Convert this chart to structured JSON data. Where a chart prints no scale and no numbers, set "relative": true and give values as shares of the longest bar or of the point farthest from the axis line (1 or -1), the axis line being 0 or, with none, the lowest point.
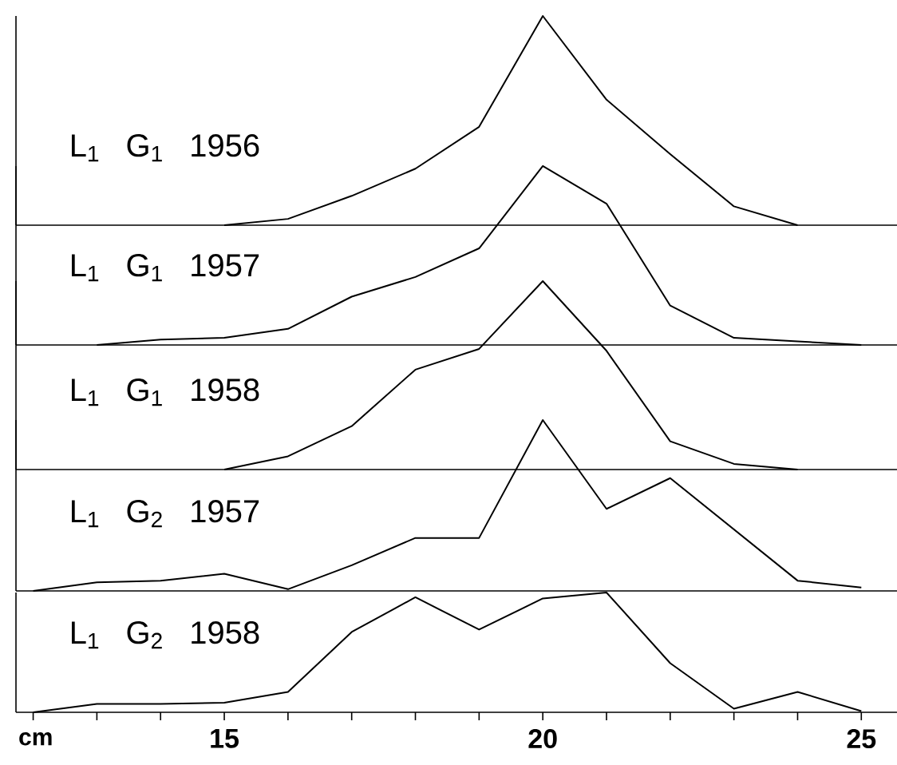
{
  "chart_data": [
    {
      "type": "line",
      "relative": true,
      "title": "L$_{1}$ G$_{1}$ 1956",
      "color": "#000000",
      "xlim": [
        11.73,
        25.56
      ],
      "tick_labels": false,
      "x": [
        15,
        16,
        17,
        18,
        19,
        20,
        21,
        22,
        23,
        24
      ],
      "values": [
        0,
        0.03,
        0.14,
        0.27,
        0.47,
        1,
        0.6,
        0.34,
        0.09,
        0
      ]
    },
    {
      "type": "line",
      "relative": true,
      "title": "L$_{1}$ G$_{1}$ 1957",
      "color": "#000000",
      "xlim": [
        11.73,
        25.56
      ],
      "tick_labels": false,
      "x": [
        13,
        14,
        15,
        16,
        17,
        18,
        19,
        20,
        21,
        22,
        23,
        24,
        25
      ],
      "values": [
        0,
        0.03,
        0.04,
        0.09,
        0.27,
        0.38,
        0.54,
        1,
        0.79,
        0.22,
        0.04,
        0.02,
        0
      ]
    },
    {
      "type": "line",
      "relative": true,
      "title": "L$_{1}$ G$_{1}$ 1958",
      "color": "#000000",
      "xlim": [
        11.73,
        25.56
      ],
      "tick_labels": false,
      "x": [
        15,
        16,
        17,
        18,
        19,
        20,
        21,
        22,
        23,
        24
      ],
      "values": [
        0,
        0.07,
        0.23,
        0.53,
        0.64,
        1,
        0.63,
        0.15,
        0.03,
        0
      ]
    },
    {
      "type": "line",
      "relative": true,
      "title": "L$_{1}$ G$_{2}$ 1957",
      "color": "#000000",
      "xlim": [
        11.73,
        25.56
      ],
      "tick_labels": false,
      "x": [
        12,
        13,
        14,
        15,
        16,
        17,
        18,
        19,
        20,
        21,
        22,
        23,
        24,
        25
      ],
      "values": [
        0,
        0.05,
        0.06,
        0.1,
        0.01,
        0.15,
        0.31,
        0.31,
        1,
        0.48,
        0.66,
        0.36,
        0.06,
        0.02
      ]
    },
    {
      "type": "line",
      "relative": true,
      "title": "L$_{1}$ G$_{2}$ 1958",
      "color": "#000000",
      "xlim": [
        11.73,
        25.56
      ],
      "tick_labels": "x",
      "xlabel": "cm",
      "xticks": [
        {
          "value": 12,
          "label": null
        },
        {
          "value": 13,
          "label": null
        },
        {
          "value": 14,
          "label": null
        },
        15,
        {
          "value": 16,
          "label": null
        },
        {
          "value": 17,
          "label": null
        },
        {
          "value": 18,
          "label": null
        },
        {
          "value": 19,
          "label": null
        },
        20,
        {
          "value": 21,
          "label": null
        },
        {
          "value": 22,
          "label": null
        },
        {
          "value": 23,
          "label": null
        },
        {
          "value": 24,
          "label": null
        },
        25
      ],
      "x": [
        12,
        13,
        14,
        15,
        16,
        17,
        18,
        19,
        20,
        21,
        22,
        23,
        24,
        25
      ],
      "values": [
        0,
        0.07,
        0.07,
        0.08,
        0.17,
        0.67,
        0.96,
        0.69,
        0.95,
        1,
        0.41,
        0.03,
        0.17,
        0.01
      ]
    }
  ]
}
